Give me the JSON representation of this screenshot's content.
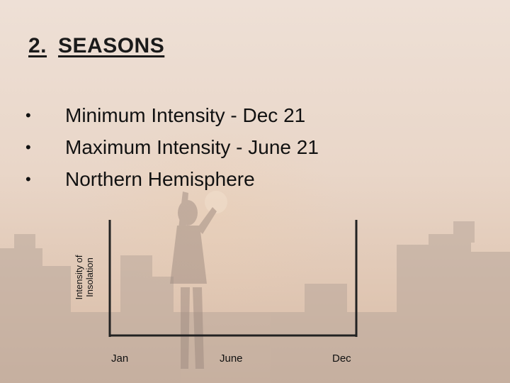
{
  "slide": {
    "title_number": "2.",
    "title_text": "SEASONS",
    "bullets": [
      {
        "marker": "•",
        "text": "Minimum Intensity - Dec 21"
      },
      {
        "marker": "•",
        "text": "Maximum Intensity - June 21"
      },
      {
        "marker": "•",
        "text": "Northern Hemisphere"
      }
    ]
  },
  "graph": {
    "y_label_line1": "Intensity of",
    "y_label_line2": "Insolation",
    "x_ticks": [
      "Jan",
      "June",
      "Dec"
    ]
  },
  "colors": {
    "background_top": "#eee0d6",
    "axis": "#222222",
    "silhouette": "#a8958a"
  }
}
